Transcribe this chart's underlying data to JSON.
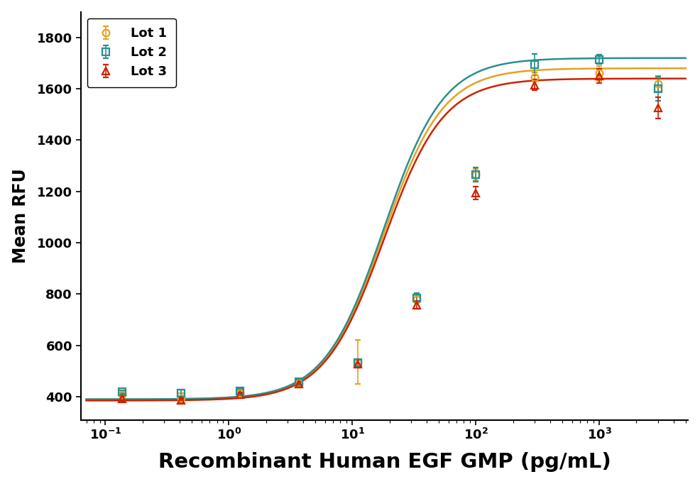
{
  "xlabel": "Recombinant Human EGF GMP (pg/mL)",
  "ylabel": "Mean RFU",
  "ylim": [
    310,
    1900
  ],
  "yticks": [
    400,
    600,
    800,
    1000,
    1200,
    1400,
    1600,
    1800
  ],
  "background_color": "#ffffff",
  "lots": [
    {
      "label": "Lot 1",
      "color": "#e8a020",
      "marker": "o",
      "x": [
        0.137,
        0.411,
        1.233,
        3.7,
        11.1,
        33.3,
        100,
        300,
        1000,
        3000
      ],
      "y": [
        408,
        395,
        415,
        453,
        535,
        780,
        1265,
        1645,
        1660,
        1620
      ],
      "yerr": [
        8,
        18,
        10,
        12,
        85,
        15,
        22,
        18,
        28,
        30
      ],
      "fit_params": [
        390,
        1680,
        18,
        1.8
      ]
    },
    {
      "label": "Lot 2",
      "color": "#2a8f8f",
      "marker": "s",
      "x": [
        0.137,
        0.411,
        1.233,
        3.7,
        11.1,
        33.3,
        100,
        300,
        1000,
        3000
      ],
      "y": [
        418,
        415,
        422,
        457,
        532,
        785,
        1265,
        1695,
        1715,
        1600
      ],
      "yerr": [
        8,
        12,
        8,
        10,
        12,
        18,
        28,
        42,
        18,
        48
      ],
      "fit_params": [
        390,
        1720,
        18,
        1.8
      ]
    },
    {
      "label": "Lot 3",
      "color": "#cc2200",
      "marker": "^",
      "x": [
        0.137,
        0.411,
        1.233,
        3.7,
        11.1,
        33.3,
        100,
        300,
        1000,
        3000
      ],
      "y": [
        392,
        385,
        408,
        450,
        528,
        758,
        1195,
        1615,
        1650,
        1525
      ],
      "yerr": [
        8,
        10,
        8,
        8,
        15,
        15,
        25,
        20,
        28,
        42
      ],
      "fit_params": [
        385,
        1640,
        18,
        1.8
      ]
    }
  ],
  "legend_fontsize": 13,
  "tick_fontsize": 13,
  "xlabel_fontsize": 21,
  "ylabel_fontsize": 17
}
